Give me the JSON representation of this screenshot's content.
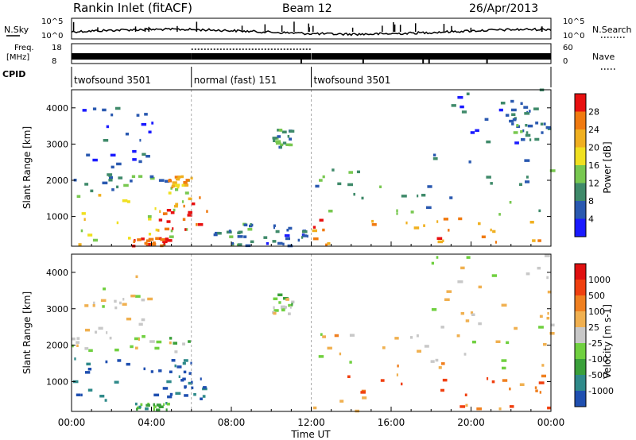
{
  "header": {
    "station": "Rankin Inlet (fitACF)",
    "beam": "Beam 12",
    "date": "26/Apr/2013"
  },
  "top_panels": {
    "nsky_label": "N.Sky",
    "nsearch_label": "N.Search",
    "nsky_ticks": [
      "10^5",
      "10^0"
    ],
    "nsearch_ticks": [
      "10^5",
      "10^0"
    ],
    "freq_label_1": "Freq.",
    "freq_label_2": "[MHz]",
    "freq_ticks": [
      "18",
      "8"
    ],
    "nave_label": "Nave",
    "nave_ticks": [
      "60",
      "0"
    ],
    "cpid_label": "CPID",
    "cpid_segments": [
      {
        "label": "twofsound 3501",
        "start": 0,
        "end": 6
      },
      {
        "label": "normal (fast) 151",
        "start": 6,
        "end": 12
      },
      {
        "label": "twofsound 3501",
        "start": 12,
        "end": 24
      }
    ]
  },
  "chart_data": [
    {
      "type": "heatmap",
      "parameter": "Power",
      "ylabel": "Slant Range [km]",
      "xlabel": "Time UT",
      "xlim": [
        0,
        24
      ],
      "ylim": [
        180,
        4500
      ],
      "xticks": [
        "00:00",
        "04:00",
        "08:00",
        "12:00",
        "16:00",
        "20:00",
        "00:00"
      ],
      "yticks": [
        1000,
        2000,
        3000,
        4000
      ],
      "colorbar": {
        "label": "Power [dB]",
        "ticks": [
          "4",
          "8",
          "12",
          "16",
          "20",
          "24",
          "28"
        ],
        "colors": [
          "#1a1aff",
          "#2a59b0",
          "#3f8a6a",
          "#78c850",
          "#f0e020",
          "#f0b020",
          "#f07a10",
          "#e81010"
        ]
      },
      "regions": [
        {
          "t0": 0.0,
          "t1": 5.9,
          "r0": 180,
          "r1": 1700,
          "level": 0.55
        },
        {
          "t0": 0.0,
          "t1": 5.9,
          "r0": 1700,
          "r1": 2200,
          "level": 0.35
        },
        {
          "t0": 0.5,
          "t1": 4.0,
          "r0": 2200,
          "r1": 4000,
          "level": 0.15
        },
        {
          "t0": 3.0,
          "t1": 5.0,
          "r0": 180,
          "r1": 400,
          "level": 0.9
        },
        {
          "t0": 4.3,
          "t1": 6.9,
          "r0": 600,
          "r1": 1600,
          "level": 0.85
        },
        {
          "t0": 4.8,
          "t1": 6.0,
          "r0": 1800,
          "r1": 2100,
          "level": 0.7
        },
        {
          "t0": 7.0,
          "t1": 9.0,
          "r0": 180,
          "r1": 800,
          "level": 0.3
        },
        {
          "t0": 9.0,
          "t1": 12.0,
          "r0": 180,
          "r1": 800,
          "level": 0.2
        },
        {
          "t0": 10.0,
          "t1": 11.0,
          "r0": 2800,
          "r1": 3400,
          "level": 0.35
        },
        {
          "t0": 12.0,
          "t1": 24.0,
          "r0": 180,
          "r1": 1000,
          "level": 0.78
        },
        {
          "t0": 12.0,
          "t1": 24.0,
          "r0": 1000,
          "r1": 2300,
          "level": 0.35
        },
        {
          "t0": 18.0,
          "t1": 24.0,
          "r0": 2300,
          "r1": 4500,
          "level": 0.2
        },
        {
          "t0": 22.0,
          "t1": 24.0,
          "r0": 3200,
          "r1": 4000,
          "level": 0.3
        }
      ]
    },
    {
      "type": "heatmap",
      "parameter": "Velocity",
      "ylabel": "Slant Range [km]",
      "xlabel": "Time UT",
      "xlim": [
        0,
        24
      ],
      "ylim": [
        180,
        4500
      ],
      "xticks": [
        "00:00",
        "04:00",
        "08:00",
        "12:00",
        "16:00",
        "20:00",
        "00:00"
      ],
      "yticks": [
        1000,
        2000,
        3000,
        4000
      ],
      "colorbar": {
        "label": "Velocity [m s-1]",
        "ticks": [
          "1000",
          "500",
          "100",
          "25",
          "-25",
          "-100",
          "-500",
          "-1000"
        ],
        "colors": [
          "#1f4fb0",
          "#2f8a8a",
          "#3aa03a",
          "#70d040",
          "#c8c8c8",
          "#f0b050",
          "#f08020",
          "#f04010",
          "#e01010"
        ]
      },
      "regions": [
        {
          "t0": 0.0,
          "t1": 5.9,
          "r0": 400,
          "r1": 1700,
          "level": 0.05
        },
        {
          "t0": 0.0,
          "t1": 5.9,
          "r0": 1800,
          "r1": 2200,
          "level": 0.45
        },
        {
          "t0": 0.5,
          "t1": 4.0,
          "r0": 2200,
          "r1": 4000,
          "level": 0.5
        },
        {
          "t0": 4.3,
          "t1": 6.9,
          "r0": 500,
          "r1": 1600,
          "level": 0.05
        },
        {
          "t0": 3.0,
          "t1": 5.0,
          "r0": 180,
          "r1": 400,
          "level": 0.3
        },
        {
          "t0": 10.0,
          "t1": 11.0,
          "r0": 2800,
          "r1": 3400,
          "level": 0.45
        },
        {
          "t0": 12.0,
          "t1": 24.0,
          "r0": 180,
          "r1": 1300,
          "level": 0.72
        },
        {
          "t0": 12.0,
          "t1": 24.0,
          "r0": 1300,
          "r1": 2300,
          "level": 0.55
        },
        {
          "t0": 18.0,
          "t1": 24.0,
          "r0": 2300,
          "r1": 4500,
          "level": 0.5
        }
      ]
    }
  ]
}
